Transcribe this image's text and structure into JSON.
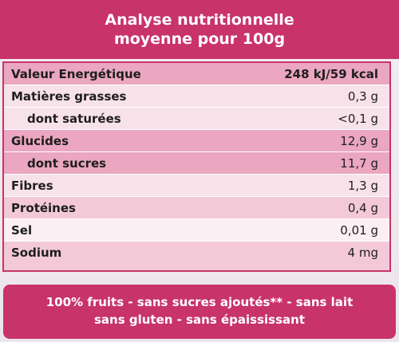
{
  "header": {
    "title_line1": "Analyse nutritionnelle",
    "title_line2": "moyenne pour 100g"
  },
  "table": {
    "rows": [
      {
        "label": "Valeur Energétique",
        "value": "248 kJ/59 kcal"
      },
      {
        "label": "Matières grasses",
        "value": "0,3 g"
      },
      {
        "label": "dont saturées",
        "value": "<0,1 g"
      },
      {
        "label": "Glucides",
        "value": "12,9 g"
      },
      {
        "label": "dont sucres",
        "value": "11,7 g"
      },
      {
        "label": "Fibres",
        "value": "1,3 g"
      },
      {
        "label": "Protéines",
        "value": "0,4 g"
      },
      {
        "label": "Sel",
        "value": "0,01 g"
      },
      {
        "label": "Sodium",
        "value": "4 mg"
      }
    ]
  },
  "footer": {
    "line1": "100% fruits - sans sucres ajoutés** - sans lait",
    "line2": "sans gluten - sans épaississant"
  },
  "colors": {
    "brand_pink": "#c8336a",
    "row_dark": "#eba6c0",
    "row_mid": "#f3c9d8",
    "row_light": "#f8e2ea"
  }
}
